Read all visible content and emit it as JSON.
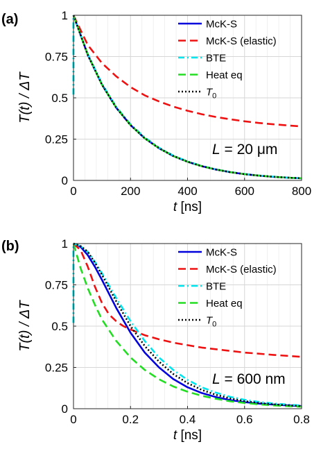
{
  "chart_data": [
    {
      "type": "line",
      "panel_label": "(a)",
      "annotation": {
        "var": "L",
        "rest": " = 20 μm"
      },
      "xlabel": {
        "var": "t",
        "rest": " [ns]"
      },
      "ylabel": "T(t) / ΔT",
      "xlim": [
        0,
        800
      ],
      "ylim": [
        0,
        1
      ],
      "xticks": [
        0,
        200,
        400,
        600,
        800
      ],
      "xtick_labels": [
        "0",
        "200",
        "400",
        "600",
        "800"
      ],
      "yticks": [
        0,
        0.25,
        0.5,
        0.75,
        1
      ],
      "ytick_labels": [
        "0",
        "0.25",
        "0.5",
        "0.75",
        "1"
      ],
      "grid": true,
      "legend_position": "top-right",
      "series": [
        {
          "name": "McK-S",
          "color": "#0000dd",
          "dash": "solid",
          "x": [
            0,
            50,
            100,
            150,
            200,
            250,
            300,
            350,
            400,
            450,
            500,
            550,
            600,
            650,
            700,
            750,
            800
          ],
          "y": [
            1.0,
            0.76,
            0.58,
            0.44,
            0.335,
            0.255,
            0.195,
            0.148,
            0.113,
            0.086,
            0.066,
            0.05,
            0.038,
            0.029,
            0.022,
            0.017,
            0.013
          ]
        },
        {
          "name": "McK-S (elastic)",
          "color": "#ee1111",
          "dash": "dashed",
          "x": [
            0,
            50,
            100,
            150,
            200,
            250,
            300,
            350,
            400,
            450,
            500,
            550,
            600,
            650,
            700,
            750,
            800
          ],
          "y": [
            1.0,
            0.82,
            0.71,
            0.63,
            0.565,
            0.515,
            0.478,
            0.447,
            0.422,
            0.401,
            0.384,
            0.37,
            0.358,
            0.348,
            0.34,
            0.333,
            0.327
          ]
        },
        {
          "name": "BTE",
          "color": "#00e5ee",
          "dash": "dashdot",
          "x": [
            0,
            50,
            100,
            150,
            200,
            250,
            300,
            350,
            400,
            450,
            500,
            550,
            600,
            650,
            700,
            750,
            800
          ],
          "y": [
            1.0,
            0.765,
            0.585,
            0.445,
            0.34,
            0.26,
            0.198,
            0.151,
            0.115,
            0.088,
            0.067,
            0.051,
            0.039,
            0.03,
            0.023,
            0.017,
            0.013
          ]
        },
        {
          "name": "Heat eq",
          "color": "#22dd22",
          "dash": "dashed",
          "x": [
            0,
            50,
            100,
            150,
            200,
            250,
            300,
            350,
            400,
            450,
            500,
            550,
            600,
            650,
            700,
            750,
            800
          ],
          "y": [
            1.0,
            0.76,
            0.58,
            0.44,
            0.335,
            0.255,
            0.195,
            0.148,
            0.113,
            0.086,
            0.066,
            0.05,
            0.038,
            0.029,
            0.022,
            0.017,
            0.013
          ]
        },
        {
          "name": "T0",
          "color": "#000000",
          "dash": "dotted",
          "x": [
            0,
            50,
            100,
            150,
            200,
            250,
            300,
            350,
            400,
            450,
            500,
            550,
            600,
            650,
            700,
            750,
            800
          ],
          "y": [
            1.0,
            0.76,
            0.58,
            0.44,
            0.335,
            0.255,
            0.195,
            0.148,
            0.113,
            0.086,
            0.066,
            0.05,
            0.038,
            0.029,
            0.022,
            0.017,
            0.013
          ]
        }
      ],
      "initial_spike": {
        "color": "#00e5ee",
        "x": 0,
        "y_range": [
          0.52,
          1.0
        ]
      }
    },
    {
      "type": "line",
      "panel_label": "(b)",
      "annotation": {
        "var": "L",
        "rest": " = 600 nm"
      },
      "xlabel": {
        "var": "t",
        "rest": " [ns]"
      },
      "ylabel": "T(t) / ΔT",
      "xlim": [
        0,
        0.8
      ],
      "ylim": [
        0,
        1
      ],
      "xticks": [
        0,
        0.2,
        0.4,
        0.6,
        0.8
      ],
      "xtick_labels": [
        "0",
        "0.2",
        "0.4",
        "0.6",
        "0.8"
      ],
      "yticks": [
        0,
        0.25,
        0.5,
        0.75,
        1
      ],
      "ytick_labels": [
        "0",
        "0.25",
        "0.5",
        "0.75",
        "1"
      ],
      "grid": true,
      "legend_position": "top-right",
      "series": [
        {
          "name": "McK-S",
          "color": "#0000dd",
          "dash": "solid",
          "x": [
            0,
            0.025,
            0.05,
            0.075,
            0.1,
            0.15,
            0.2,
            0.25,
            0.3,
            0.35,
            0.4,
            0.45,
            0.5,
            0.55,
            0.6,
            0.65,
            0.7,
            0.75,
            0.8
          ],
          "y": [
            1.0,
            0.98,
            0.93,
            0.86,
            0.78,
            0.61,
            0.46,
            0.34,
            0.25,
            0.18,
            0.13,
            0.095,
            0.07,
            0.052,
            0.04,
            0.031,
            0.025,
            0.02,
            0.016
          ]
        },
        {
          "name": "McK-S (elastic)",
          "color": "#ee1111",
          "dash": "dashed",
          "x": [
            0,
            0.025,
            0.05,
            0.075,
            0.1,
            0.125,
            0.15,
            0.175,
            0.2,
            0.25,
            0.3,
            0.35,
            0.4,
            0.45,
            0.5,
            0.55,
            0.6,
            0.65,
            0.7,
            0.75,
            0.8
          ],
          "y": [
            1.0,
            0.96,
            0.86,
            0.74,
            0.64,
            0.57,
            0.53,
            0.5,
            0.48,
            0.445,
            0.42,
            0.4,
            0.385,
            0.37,
            0.36,
            0.35,
            0.34,
            0.333,
            0.326,
            0.32,
            0.314
          ]
        },
        {
          "name": "BTE",
          "color": "#00e5ee",
          "dash": "dashdot",
          "x": [
            0,
            0.025,
            0.05,
            0.075,
            0.1,
            0.15,
            0.2,
            0.25,
            0.3,
            0.35,
            0.4,
            0.45,
            0.5,
            0.55,
            0.6,
            0.65,
            0.7,
            0.75,
            0.8
          ],
          "y": [
            1.0,
            0.985,
            0.95,
            0.89,
            0.82,
            0.67,
            0.53,
            0.41,
            0.31,
            0.235,
            0.175,
            0.13,
            0.097,
            0.072,
            0.054,
            0.041,
            0.032,
            0.025,
            0.019
          ]
        },
        {
          "name": "Heat eq",
          "color": "#22dd22",
          "dash": "dashed",
          "x": [
            0,
            0.025,
            0.05,
            0.075,
            0.1,
            0.15,
            0.2,
            0.25,
            0.3,
            0.35,
            0.4,
            0.45,
            0.5,
            0.55,
            0.6,
            0.65,
            0.7,
            0.75,
            0.8
          ],
          "y": [
            1.0,
            0.85,
            0.73,
            0.63,
            0.54,
            0.41,
            0.31,
            0.235,
            0.178,
            0.135,
            0.103,
            0.078,
            0.06,
            0.045,
            0.035,
            0.027,
            0.02,
            0.016,
            0.012
          ]
        },
        {
          "name": "T0",
          "color": "#000000",
          "dash": "dotted",
          "x": [
            0,
            0.025,
            0.05,
            0.075,
            0.1,
            0.15,
            0.2,
            0.25,
            0.3,
            0.35,
            0.4,
            0.45,
            0.5,
            0.55,
            0.6,
            0.65,
            0.7,
            0.75,
            0.8
          ],
          "y": [
            1.0,
            0.985,
            0.95,
            0.885,
            0.81,
            0.65,
            0.5,
            0.38,
            0.285,
            0.21,
            0.155,
            0.114,
            0.084,
            0.062,
            0.046,
            0.035,
            0.027,
            0.021,
            0.016
          ]
        }
      ],
      "initial_spike": {
        "color": "#00e5ee",
        "x": 0,
        "y_range": [
          0.52,
          1.0
        ]
      }
    }
  ]
}
